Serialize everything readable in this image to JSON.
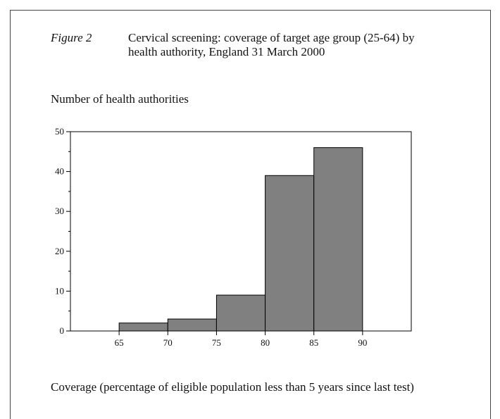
{
  "figure": {
    "label": "Figure  2",
    "title": "Cervical screening: coverage of target age group (25-64) by health authority, England 31 March 2000"
  },
  "chart_data": {
    "type": "bar",
    "subtype": "histogram",
    "ylabel": "Number of health authorities",
    "xlabel": "Coverage (percentage of eligible population less than 5 years since last test)",
    "bins": [
      {
        "from": 65,
        "to": 70,
        "value": 2
      },
      {
        "from": 70,
        "to": 75,
        "value": 3
      },
      {
        "from": 75,
        "to": 80,
        "value": 9
      },
      {
        "from": 80,
        "to": 85,
        "value": 39
      },
      {
        "from": 85,
        "to": 90,
        "value": 46
      }
    ],
    "xlim": [
      60,
      95
    ],
    "ylim": [
      0,
      50
    ],
    "xticks": [
      65,
      70,
      75,
      80,
      85,
      90
    ],
    "yticks": [
      0,
      10,
      20,
      30,
      40,
      50
    ],
    "y_minor_step": 5,
    "grid": false,
    "legend": "none",
    "bar_color": "#808080",
    "edge_color": "#000000"
  }
}
